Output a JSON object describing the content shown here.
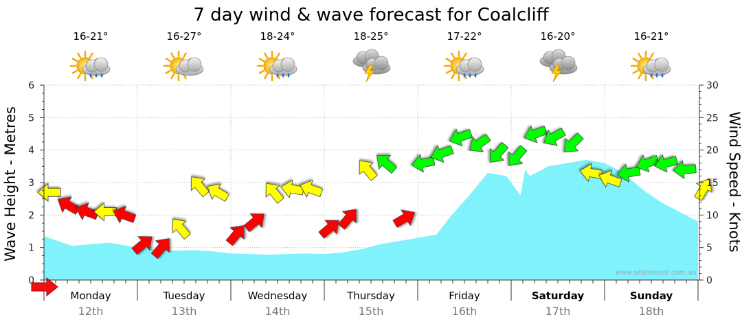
{
  "chart_data": {
    "type": "area+arrows",
    "title": "7 day wind & wave forecast for Coalcliff",
    "ylabel_left": "Wave Height - Metres",
    "ylabel_right": "Wind Speed - Knots",
    "ylim_left": [
      0,
      6
    ],
    "ylim_right": [
      0,
      30
    ],
    "left_ticks": [
      "0",
      "1",
      "2",
      "3",
      "4",
      "5",
      "6"
    ],
    "right_ticks": [
      "0",
      "5",
      "10",
      "15",
      "20",
      "25",
      "30"
    ],
    "watermark": "www.seabreeze.com.au",
    "days": [
      {
        "name": "Monday",
        "date": "12th",
        "temp": "16-21°",
        "weather": "sun-rain",
        "bold": false
      },
      {
        "name": "Tuesday",
        "date": "13th",
        "temp": "16-27°",
        "weather": "sun-cloud",
        "bold": false
      },
      {
        "name": "Wednesday",
        "date": "14th",
        "temp": "18-24°",
        "weather": "sun-rain",
        "bold": false
      },
      {
        "name": "Thursday",
        "date": "15th",
        "temp": "18-25°",
        "weather": "storm",
        "bold": false
      },
      {
        "name": "Friday",
        "date": "16th",
        "temp": "17-22°",
        "weather": "sun-rain",
        "bold": false
      },
      {
        "name": "Saturday",
        "date": "17th",
        "temp": "16-20°",
        "weather": "storm",
        "bold": true
      },
      {
        "name": "Sunday",
        "date": "18th",
        "temp": "16-21°",
        "weather": "sun-rain",
        "bold": true
      }
    ],
    "wave_height_m": {
      "t_days": [
        0.0,
        0.1,
        0.3,
        0.5,
        0.7,
        0.9,
        1.0,
        1.2,
        1.4,
        1.6,
        1.8,
        2.0,
        2.2,
        2.4,
        2.6,
        2.8,
        3.0,
        3.2,
        3.4,
        3.6,
        3.8,
        4.0,
        4.2,
        4.35,
        4.55,
        4.75,
        4.95,
        5.1,
        5.15,
        5.2,
        5.4,
        5.6,
        5.8,
        6.0,
        6.2,
        6.4,
        6.6,
        6.8,
        7.0
      ],
      "values": [
        1.35,
        1.25,
        1.05,
        1.1,
        1.15,
        1.05,
        1.0,
        0.95,
        0.9,
        0.92,
        0.88,
        0.82,
        0.8,
        0.78,
        0.8,
        0.82,
        0.8,
        0.85,
        0.95,
        1.1,
        1.2,
        1.3,
        1.4,
        1.95,
        2.6,
        3.3,
        3.2,
        2.6,
        3.4,
        3.2,
        3.5,
        3.6,
        3.7,
        3.6,
        3.3,
        2.8,
        2.4,
        2.1,
        1.8
      ]
    },
    "wind_knots": {
      "t_days": [
        0.0,
        0.2,
        0.4,
        0.6,
        0.8,
        1.0,
        1.2,
        1.4,
        1.6,
        1.8,
        2.0,
        2.2,
        2.4,
        2.6,
        2.8,
        3.0,
        3.2,
        3.4,
        3.6,
        3.8,
        4.0,
        4.2,
        4.4,
        4.6,
        4.8,
        5.0,
        5.2,
        5.4,
        5.6,
        5.8,
        6.0,
        6.2,
        6.4,
        6.6,
        6.8,
        7.0
      ],
      "values": [
        13.5,
        11.5,
        10.5,
        10.5,
        10.0,
        5.5,
        5.0,
        8.0,
        14.5,
        13.5,
        7.0,
        9.0,
        13.5,
        14.0,
        14.0,
        8.0,
        9.5,
        17.0,
        18.0,
        9.5,
        18.0,
        19.5,
        22.0,
        21.0,
        19.5,
        19.0,
        22.5,
        22.0,
        21.0,
        16.5,
        15.5,
        16.5,
        18.0,
        18.0,
        17.0,
        14.0
      ],
      "colors": [
        "#ffff00",
        "#ff0000",
        "#ff0000",
        "#ffff00",
        "#ff0000",
        "#ff0000",
        "#ff0000",
        "#ffff00",
        "#ffff00",
        "#ffff00",
        "#ff0000",
        "#ff0000",
        "#ffff00",
        "#ffff00",
        "#ffff00",
        "#ff0000",
        "#ff0000",
        "#ffff00",
        "#00ff00",
        "#ff0000",
        "#00ff00",
        "#00ff00",
        "#00ff00",
        "#00ff00",
        "#00ff00",
        "#00ff00",
        "#00ff00",
        "#00ff00",
        "#00ff00",
        "#ffff00",
        "#ffff00",
        "#00ff00",
        "#00ff00",
        "#00ff00",
        "#00ff00",
        "#ffff00"
      ],
      "direction_deg": [
        180,
        210,
        200,
        180,
        200,
        320,
        310,
        230,
        230,
        210,
        310,
        320,
        230,
        190,
        200,
        320,
        310,
        230,
        220,
        330,
        170,
        160,
        160,
        145,
        130,
        130,
        160,
        150,
        135,
        190,
        200,
        170,
        160,
        165,
        175,
        300
      ]
    }
  }
}
